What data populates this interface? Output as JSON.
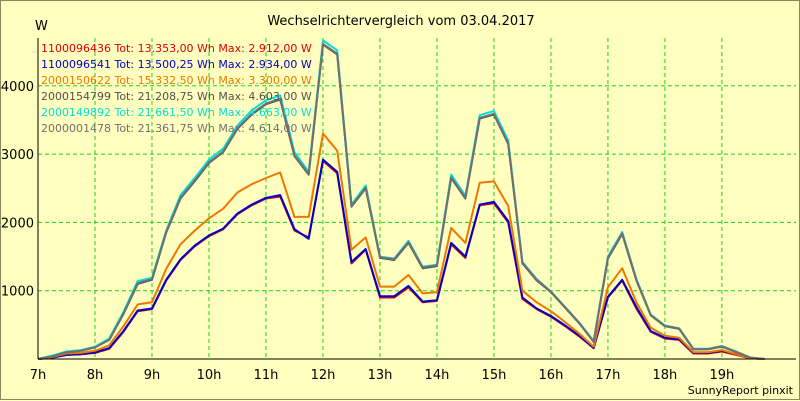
{
  "chart_data": {
    "type": "line",
    "title": "Wechselrichtervergleich vom 03.04.2017",
    "ylabel": "W",
    "xlabel": "",
    "footer": "SunnyReport pinxit",
    "x_tick_labels": [
      "7h",
      "8h",
      "9h",
      "10h",
      "11h",
      "12h",
      "13h",
      "14h",
      "15h",
      "16h",
      "17h",
      "18h",
      "19h"
    ],
    "y_ticks": [
      1000,
      2000,
      3000,
      4000
    ],
    "xlim": [
      7,
      20.3
    ],
    "ylim": [
      0,
      4700
    ],
    "grid": true,
    "legend_position": "top-left",
    "x": [
      7.0,
      7.25,
      7.5,
      7.75,
      8.0,
      8.25,
      8.5,
      8.75,
      9.0,
      9.25,
      9.5,
      9.75,
      10.0,
      10.25,
      10.5,
      10.75,
      11.0,
      11.25,
      11.5,
      11.75,
      12.0,
      12.25,
      12.5,
      12.75,
      13.0,
      13.25,
      13.5,
      13.75,
      14.0,
      14.25,
      14.5,
      14.75,
      15.0,
      15.25,
      15.5,
      15.75,
      16.0,
      16.25,
      16.5,
      16.75,
      17.0,
      17.25,
      17.5,
      17.75,
      18.0,
      18.25,
      18.5,
      18.75,
      19.0,
      19.25,
      19.5,
      19.75
    ],
    "series": [
      {
        "name": "1100096436",
        "total": "13.353,00",
        "max": "2.912,00",
        "color": "#dd0000",
        "values": [
          0,
          20,
          60,
          70,
          90,
          150,
          400,
          700,
          730,
          1150,
          1450,
          1650,
          1800,
          1900,
          2120,
          2250,
          2350,
          2380,
          1880,
          1780,
          2900,
          2720,
          1400,
          1600,
          900,
          900,
          1050,
          830,
          850,
          1680,
          1480,
          2250,
          2280,
          2000,
          880,
          730,
          620,
          480,
          330,
          160,
          900,
          1150,
          740,
          400,
          300,
          280,
          80,
          80,
          110,
          60,
          10,
          0
        ]
      },
      {
        "name": "1100096541",
        "total": "13.500,25",
        "max": "2.934,00",
        "color": "#0000cc",
        "values": [
          0,
          20,
          60,
          70,
          95,
          160,
          410,
          710,
          740,
          1160,
          1460,
          1660,
          1810,
          1910,
          2130,
          2260,
          2360,
          2400,
          1900,
          1760,
          2920,
          2740,
          1420,
          1610,
          920,
          920,
          1070,
          840,
          860,
          1700,
          1500,
          2260,
          2300,
          2020,
          900,
          740,
          630,
          490,
          340,
          160,
          910,
          1160,
          760,
          410,
          310,
          290,
          90,
          90,
          120,
          70,
          10,
          0
        ]
      },
      {
        "name": "2000150622",
        "total": "15.332,50",
        "max": "3.300,00",
        "color": "#ee7700",
        "values": [
          0,
          30,
          80,
          90,
          120,
          200,
          480,
          800,
          830,
          1320,
          1680,
          1880,
          2060,
          2200,
          2440,
          2560,
          2650,
          2730,
          2080,
          2080,
          3300,
          3050,
          1600,
          1780,
          1060,
          1060,
          1230,
          960,
          980,
          1920,
          1700,
          2580,
          2600,
          2240,
          1000,
          830,
          700,
          540,
          370,
          180,
          1050,
          1330,
          830,
          460,
          340,
          310,
          100,
          100,
          130,
          70,
          10,
          0
        ]
      },
      {
        "name": "2000154799",
        "total": "21.208,75",
        "max": "4.603,00",
        "color": "#505050",
        "values": [
          0,
          40,
          100,
          120,
          170,
          280,
          660,
          1100,
          1160,
          1850,
          2350,
          2600,
          2870,
          3030,
          3370,
          3580,
          3730,
          3800,
          2970,
          2700,
          4603,
          4460,
          2230,
          2500,
          1480,
          1450,
          1700,
          1330,
          1360,
          2650,
          2350,
          3520,
          3580,
          3150,
          1400,
          1150,
          980,
          750,
          520,
          250,
          1470,
          1830,
          1150,
          640,
          480,
          440,
          140,
          140,
          180,
          100,
          20,
          0
        ]
      },
      {
        "name": "2000149892",
        "total": "21.661,50",
        "max": "4.663,00",
        "color": "#00dddd",
        "values": [
          0,
          50,
          110,
          130,
          180,
          300,
          690,
          1140,
          1190,
          1880,
          2400,
          2650,
          2920,
          3080,
          3420,
          3640,
          3790,
          3860,
          3030,
          2740,
          4663,
          4520,
          2260,
          2540,
          1500,
          1470,
          1730,
          1350,
          1380,
          2700,
          2390,
          3570,
          3630,
          3200,
          1420,
          1170,
          990,
          760,
          530,
          260,
          1500,
          1860,
          1170,
          650,
          490,
          450,
          150,
          150,
          190,
          110,
          20,
          0
        ]
      },
      {
        "name": "2000001478",
        "total": "21.361,75",
        "max": "4.614,00",
        "color": "#707070",
        "values": [
          0,
          40,
          100,
          120,
          170,
          280,
          665,
          1110,
          1170,
          1860,
          2360,
          2610,
          2880,
          3040,
          3380,
          3590,
          3740,
          3810,
          2980,
          2710,
          4614,
          4470,
          2240,
          2510,
          1490,
          1460,
          1710,
          1340,
          1370,
          2660,
          2360,
          3530,
          3590,
          3160,
          1410,
          1160,
          985,
          755,
          525,
          255,
          1480,
          1840,
          1160,
          645,
          485,
          445,
          145,
          145,
          185,
          105,
          20,
          0
        ]
      }
    ]
  }
}
